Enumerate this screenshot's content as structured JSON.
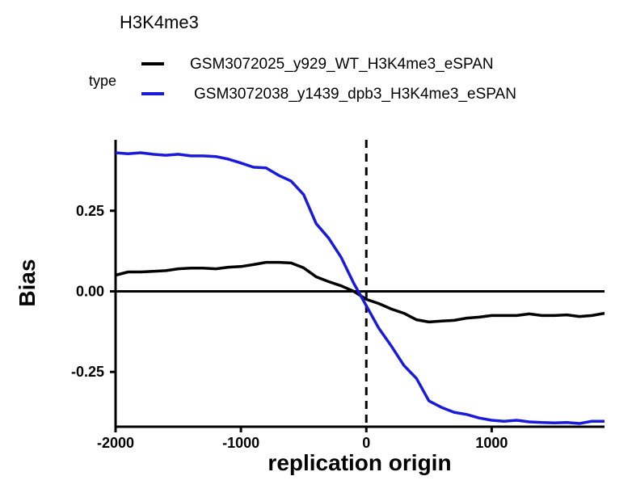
{
  "chart_data": {
    "type": "line",
    "title": "H3K4me3",
    "xlabel": "replication origin",
    "ylabel": "Bias",
    "xlim": [
      -2000,
      1900
    ],
    "ylim": [
      -0.42,
      0.47
    ],
    "xticks": [
      -2000,
      -1000,
      0,
      1000
    ],
    "xtick_labels": [
      "-2000",
      "-1000",
      "0",
      "1000"
    ],
    "yticks": [
      0.25,
      0.0,
      -0.25
    ],
    "ytick_labels": [
      "0.25",
      "0.00",
      "-0.25"
    ],
    "reference_lines": {
      "horizontal_y": 0,
      "vertical_x_dashed": 0
    },
    "legend": {
      "title": "type",
      "position": "top"
    },
    "grid": false,
    "series": [
      {
        "name": "GSM3072025_y929_WT_H3K4me3_eSPAN",
        "color": "#000000",
        "x": [
          -2000,
          -1900,
          -1800,
          -1700,
          -1600,
          -1500,
          -1400,
          -1300,
          -1200,
          -1100,
          -1000,
          -900,
          -800,
          -700,
          -600,
          -500,
          -400,
          -300,
          -200,
          -100,
          0,
          100,
          200,
          300,
          400,
          500,
          600,
          700,
          800,
          900,
          1000,
          1100,
          1200,
          1300,
          1400,
          1500,
          1600,
          1700,
          1800,
          1900
        ],
        "y": [
          0.05,
          0.06,
          0.06,
          0.062,
          0.064,
          0.07,
          0.072,
          0.072,
          0.07,
          0.075,
          0.077,
          0.083,
          0.09,
          0.09,
          0.088,
          0.073,
          0.045,
          0.03,
          0.017,
          0.0,
          -0.025,
          -0.038,
          -0.055,
          -0.068,
          -0.088,
          -0.095,
          -0.092,
          -0.09,
          -0.083,
          -0.08,
          -0.075,
          -0.075,
          -0.075,
          -0.07,
          -0.075,
          -0.075,
          -0.073,
          -0.078,
          -0.075,
          -0.068
        ]
      },
      {
        "name": "GSM3072038_y1439_dpb3_H3K4me3_eSPAN",
        "color": "#1a1adc",
        "x": [
          -2000,
          -1900,
          -1800,
          -1700,
          -1600,
          -1500,
          -1400,
          -1300,
          -1200,
          -1100,
          -1000,
          -900,
          -800,
          -700,
          -600,
          -500,
          -400,
          -300,
          -200,
          -100,
          0,
          100,
          200,
          300,
          400,
          500,
          600,
          700,
          800,
          900,
          1000,
          1100,
          1200,
          1300,
          1400,
          1500,
          1600,
          1700,
          1800,
          1900
        ],
        "y": [
          0.43,
          0.427,
          0.43,
          0.425,
          0.422,
          0.425,
          0.42,
          0.42,
          0.418,
          0.41,
          0.398,
          0.385,
          0.383,
          0.36,
          0.342,
          0.3,
          0.21,
          0.165,
          0.105,
          0.025,
          -0.045,
          -0.115,
          -0.17,
          -0.23,
          -0.27,
          -0.34,
          -0.36,
          -0.375,
          -0.382,
          -0.393,
          -0.4,
          -0.403,
          -0.4,
          -0.405,
          -0.407,
          -0.408,
          -0.407,
          -0.41,
          -0.403,
          -0.403
        ]
      }
    ]
  }
}
